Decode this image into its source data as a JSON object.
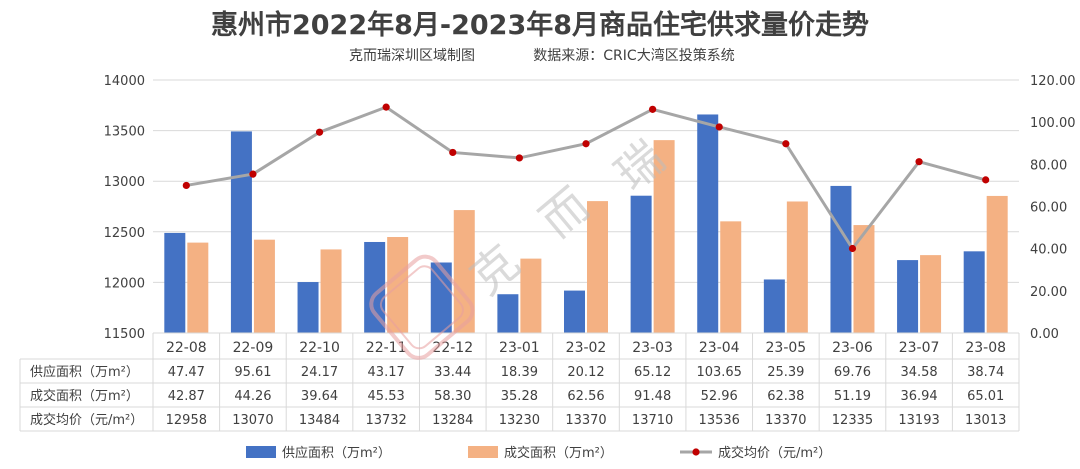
{
  "title": "惠州市2022年8月-2023年8月商品住宅供求量价走势",
  "subtitle_left": "克而瑞深圳区域制图",
  "subtitle_right": "数据来源：CRIC大湾区投策系统",
  "watermark": "克而瑞",
  "colors": {
    "supply": "#4472C4",
    "deal": "#F4B183",
    "price_line": "#A6A6A6",
    "price_marker": "#C00000",
    "grid": "#D9D9D9",
    "text": "#404040"
  },
  "chart_data": {
    "type": "bar",
    "categories": [
      "22-08",
      "22-09",
      "22-10",
      "22-11",
      "22-12",
      "23-01",
      "23-02",
      "23-03",
      "23-04",
      "23-05",
      "23-06",
      "23-07",
      "23-08"
    ],
    "series": [
      {
        "name": "供应面积（万m²）",
        "axis": "right",
        "type": "bar",
        "values": [
          47.47,
          95.61,
          24.17,
          43.17,
          33.44,
          18.39,
          20.12,
          65.12,
          103.65,
          25.39,
          69.76,
          34.58,
          38.74
        ],
        "labels": [
          "47.47",
          "95.61",
          "24.17",
          "43.17",
          "33.44",
          "18.39",
          "20.12",
          "65.12",
          "103.65",
          "25.39",
          "69.76",
          "34.58",
          "38.74"
        ]
      },
      {
        "name": "成交面积（万m²）",
        "axis": "right",
        "type": "bar",
        "values": [
          42.87,
          44.26,
          39.64,
          45.53,
          58.3,
          35.28,
          62.56,
          91.48,
          52.96,
          62.38,
          51.19,
          36.94,
          65.01
        ],
        "labels": [
          "42.87",
          "44.26",
          "39.64",
          "45.53",
          "58.30",
          "35.28",
          "62.56",
          "91.48",
          "52.96",
          "62.38",
          "51.19",
          "36.94",
          "65.01"
        ]
      },
      {
        "name": "成交均价（元/m²）",
        "axis": "left",
        "type": "line",
        "values": [
          12958,
          13070,
          13484,
          13732,
          13284,
          13230,
          13370,
          13710,
          13536,
          13370,
          12335,
          13193,
          13013
        ],
        "labels": [
          "12958",
          "13070",
          "13484",
          "13732",
          "13284",
          "13230",
          "13370",
          "13710",
          "13536",
          "13370",
          "12335",
          "13193",
          "13013"
        ]
      }
    ],
    "y_left": {
      "min": 11500,
      "max": 14000,
      "ticks": [
        "11500",
        "12000",
        "12500",
        "13000",
        "13500",
        "14000"
      ]
    },
    "y_right": {
      "min": 0,
      "max": 120,
      "ticks": [
        "0.00",
        "20.00",
        "40.00",
        "60.00",
        "80.00",
        "100.00",
        "120.00"
      ]
    },
    "grid": true,
    "legend": "bottom",
    "table_row_labels": [
      "供应面积（万m²）",
      "成交面积（万m²）",
      "成交均价（元/m²）"
    ]
  }
}
